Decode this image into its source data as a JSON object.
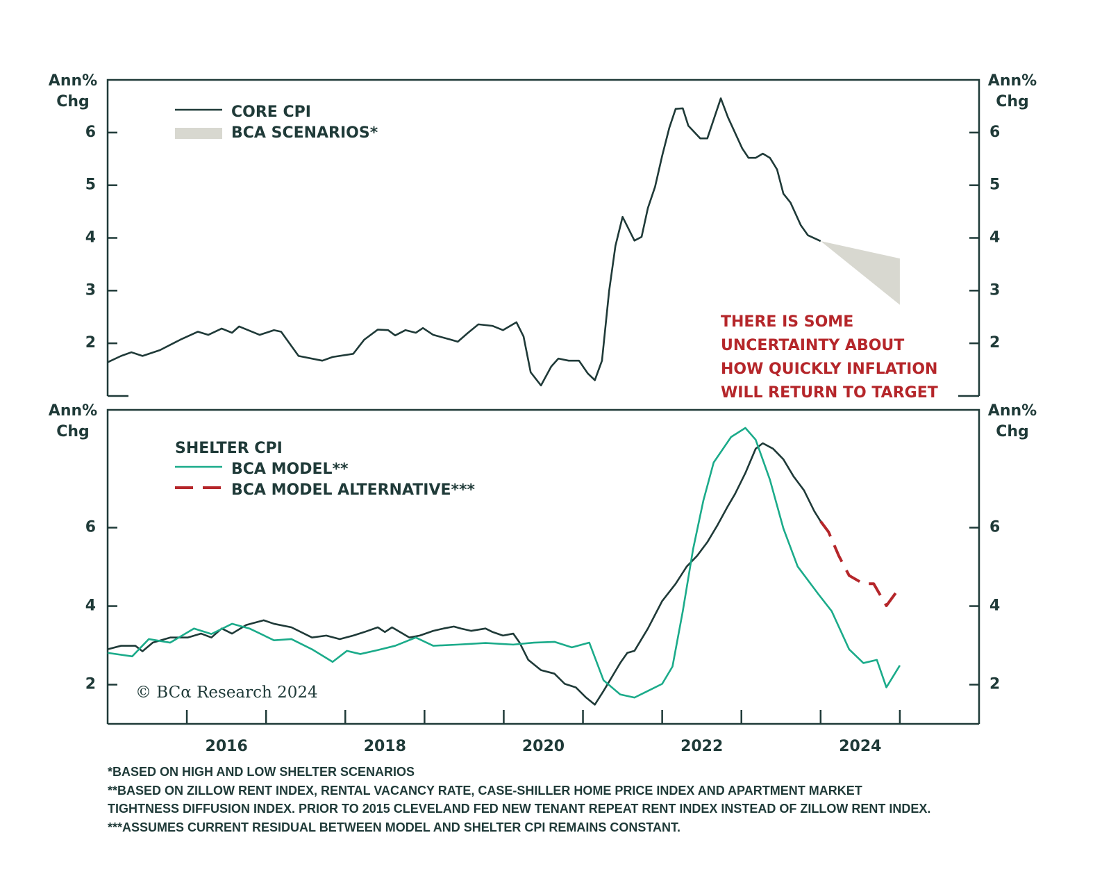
{
  "chart_data": [
    {
      "type": "line",
      "ylabel": [
        "Ann%",
        "Chg"
      ],
      "y2label": [
        "Ann%",
        "Chg"
      ],
      "xlim": [
        2015,
        2026
      ],
      "ylim": [
        1,
        7
      ],
      "yticks": [
        2,
        3,
        4,
        5,
        6
      ],
      "series": [
        {
          "name": "CORE CPI",
          "color": "#1f3a38",
          "kind": "line",
          "x": [
            2015.0,
            2015.17,
            2015.3,
            2015.44,
            2015.66,
            2015.92,
            2016.14,
            2016.27,
            2016.44,
            2016.57,
            2016.66,
            2016.92,
            2017.1,
            2017.19,
            2017.41,
            2017.71,
            2017.84,
            2018.1,
            2018.24,
            2018.41,
            2018.54,
            2018.63,
            2018.76,
            2018.89,
            2018.98,
            2019.11,
            2019.33,
            2019.42,
            2019.55,
            2019.68,
            2019.86,
            2019.99,
            2020.16,
            2020.25,
            2020.34,
            2020.47,
            2020.6,
            2020.69,
            2020.82,
            2020.95,
            2021.06,
            2021.15,
            2021.24,
            2021.33,
            2021.41,
            2021.5,
            2021.65,
            2021.74,
            2021.82,
            2021.91,
            2022.0,
            2022.09,
            2022.17,
            2022.26,
            2022.33,
            2022.48,
            2022.57,
            2022.74,
            2022.83,
            2023.01,
            2023.09,
            2023.18,
            2023.27,
            2023.36,
            2023.45,
            2023.53,
            2023.62,
            2023.75,
            2023.84,
            2024.0
          ],
          "values": [
            1.64,
            1.76,
            1.83,
            1.76,
            1.87,
            2.07,
            2.22,
            2.16,
            2.28,
            2.2,
            2.32,
            2.16,
            2.25,
            2.22,
            1.76,
            1.67,
            1.74,
            1.8,
            2.07,
            2.26,
            2.25,
            2.15,
            2.25,
            2.2,
            2.29,
            2.16,
            2.07,
            2.03,
            2.2,
            2.36,
            2.33,
            2.25,
            2.4,
            2.13,
            1.45,
            1.2,
            1.56,
            1.71,
            1.67,
            1.67,
            1.43,
            1.3,
            1.67,
            2.99,
            3.85,
            4.4,
            3.95,
            4.02,
            4.57,
            4.97,
            5.56,
            6.09,
            6.45,
            6.46,
            6.13,
            5.89,
            5.89,
            6.65,
            6.29,
            5.7,
            5.52,
            5.52,
            5.6,
            5.52,
            5.3,
            4.84,
            4.67,
            4.24,
            4.05,
            3.94
          ]
        },
        {
          "name": "BCA SCENARIOS*",
          "color": "#d8d8d0",
          "kind": "band",
          "x": [
            2024.0,
            2025.0
          ],
          "low": [
            3.94,
            2.73
          ],
          "high": [
            3.94,
            3.61
          ]
        }
      ],
      "annotation": [
        "THERE IS SOME",
        "UNCERTAINTY ABOUT",
        "HOW QUICKLY INFLATION",
        "WILL RETURN TO TARGET"
      ],
      "annotation_color": "#b5262a"
    },
    {
      "type": "line",
      "ylabel": [
        "Ann%",
        "Chg"
      ],
      "y2label": [
        "Ann%",
        "Chg"
      ],
      "xlim": [
        2015,
        2026
      ],
      "ylim": [
        1,
        9
      ],
      "yticks": [
        2,
        4,
        6
      ],
      "xticks": [
        2016,
        2017,
        2018,
        2019,
        2020,
        2021,
        2022,
        2023,
        2024,
        2025
      ],
      "xticklabels": [
        2016,
        2018,
        2020,
        2022,
        2024
      ],
      "series": [
        {
          "name": "SHELTER CPI",
          "color": "#1f3a38",
          "kind": "line",
          "legend_line": false,
          "x": [
            2015.0,
            2015.17,
            2015.35,
            2015.44,
            2015.57,
            2015.79,
            2016.01,
            2016.18,
            2016.31,
            2016.44,
            2016.57,
            2016.75,
            2016.97,
            2017.1,
            2017.32,
            2017.58,
            2017.76,
            2017.93,
            2018.1,
            2018.24,
            2018.41,
            2018.5,
            2018.59,
            2018.81,
            2018.94,
            2019.11,
            2019.24,
            2019.37,
            2019.46,
            2019.59,
            2019.77,
            2019.86,
            2019.99,
            2020.12,
            2020.2,
            2020.31,
            2020.47,
            2020.64,
            2020.77,
            2020.91,
            2021.04,
            2021.15,
            2021.26,
            2021.34,
            2021.47,
            2021.56,
            2021.65,
            2021.82,
            2022.0,
            2022.17,
            2022.31,
            2022.44,
            2022.57,
            2022.7,
            2022.83,
            2022.92,
            2023.05,
            2023.18,
            2023.27,
            2023.4,
            2023.53,
            2023.66,
            2023.79,
            2023.92,
            2024.0
          ],
          "values": [
            2.9,
            2.99,
            2.99,
            2.85,
            3.07,
            3.2,
            3.2,
            3.3,
            3.2,
            3.43,
            3.3,
            3.52,
            3.64,
            3.55,
            3.46,
            3.2,
            3.25,
            3.16,
            3.25,
            3.34,
            3.46,
            3.34,
            3.46,
            3.2,
            3.25,
            3.37,
            3.43,
            3.48,
            3.43,
            3.37,
            3.43,
            3.34,
            3.25,
            3.3,
            3.07,
            2.63,
            2.37,
            2.28,
            2.02,
            1.93,
            1.67,
            1.49,
            1.84,
            2.11,
            2.55,
            2.81,
            2.86,
            3.43,
            4.13,
            4.57,
            5.01,
            5.28,
            5.63,
            6.07,
            6.55,
            6.86,
            7.39,
            8.01,
            8.15,
            8.01,
            7.74,
            7.3,
            6.95,
            6.42,
            6.16
          ]
        },
        {
          "name": "BCA MODEL**",
          "color": "#1bab8a",
          "kind": "line",
          "x": [
            2015.0,
            2015.31,
            2015.52,
            2015.79,
            2016.09,
            2016.31,
            2016.57,
            2016.79,
            2017.1,
            2017.32,
            2017.58,
            2017.84,
            2018.02,
            2018.19,
            2018.41,
            2018.63,
            2018.89,
            2019.11,
            2019.42,
            2019.77,
            2020.12,
            2020.38,
            2020.64,
            2020.86,
            2021.08,
            2021.26,
            2021.47,
            2021.65,
            2021.82,
            2022.0,
            2022.13,
            2022.26,
            2022.39,
            2022.52,
            2022.65,
            2022.87,
            2023.05,
            2023.18,
            2023.36,
            2023.53,
            2023.71,
            2023.97,
            2024.14,
            2024.36,
            2024.54,
            2024.71,
            2024.83,
            2025.0
          ],
          "values": [
            2.81,
            2.72,
            3.16,
            3.07,
            3.43,
            3.29,
            3.55,
            3.43,
            3.13,
            3.16,
            2.9,
            2.58,
            2.86,
            2.78,
            2.88,
            2.99,
            3.2,
            2.99,
            3.02,
            3.06,
            3.02,
            3.07,
            3.09,
            2.95,
            3.07,
            2.11,
            1.75,
            1.67,
            1.84,
            2.02,
            2.46,
            3.87,
            5.45,
            6.69,
            7.66,
            8.31,
            8.54,
            8.24,
            7.22,
            5.98,
            5.01,
            4.31,
            3.87,
            2.9,
            2.55,
            2.63,
            1.93,
            2.49
          ]
        },
        {
          "name": "BCA MODEL ALTERNATIVE***",
          "color": "#b5262a",
          "kind": "line",
          "dashed": true,
          "x": [
            2024.0,
            2024.1,
            2024.23,
            2024.36,
            2024.54,
            2024.67,
            2024.83,
            2025.0
          ],
          "values": [
            6.16,
            5.89,
            5.28,
            4.78,
            4.57,
            4.57,
            4.01,
            4.48
          ]
        }
      ]
    }
  ],
  "copyright": "© BCα Research 2024",
  "footnotes": [
    " *BASED ON HIGH AND LOW SHELTER SCENARIOS",
    "**BASED ON ZILLOW RENT INDEX, RENTAL VACANCY RATE, CASE-SHILLER HOME PRICE INDEX AND APARTMENT MARKET",
    "TIGHTNESS DIFFUSION INDEX. PRIOR TO 2015 CLEVELAND FED NEW TENANT REPEAT RENT INDEX INSTEAD OF ZILLOW RENT INDEX.",
    "***ASSUMES CURRENT RESIDUAL BETWEEN MODEL AND SHELTER CPI  REMAINS CONSTANT."
  ]
}
